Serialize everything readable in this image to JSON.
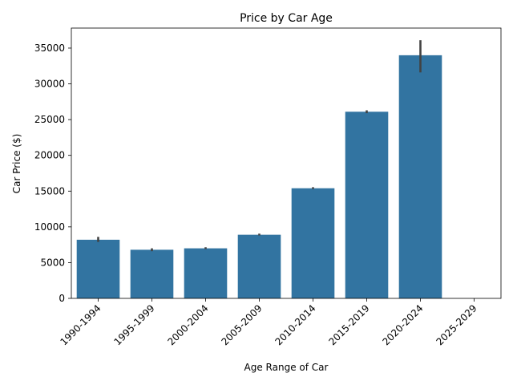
{
  "chart_data": {
    "type": "bar",
    "title": "Price by Car Age",
    "xlabel": "Age Range of Car",
    "ylabel": "Car Price ($)",
    "categories": [
      "1990-1994",
      "1995-1999",
      "2000-2004",
      "2005-2009",
      "2010-2014",
      "2015-2019",
      "2020-2024",
      "2025-2029"
    ],
    "values": [
      8200,
      6800,
      7000,
      8900,
      15400,
      26100,
      34000,
      null
    ],
    "error_bars": [
      [
        7900,
        8600
      ],
      [
        6600,
        7000
      ],
      [
        6900,
        7150
      ],
      [
        8800,
        9050
      ],
      [
        15300,
        15550
      ],
      [
        25900,
        26300
      ],
      [
        31600,
        36100
      ],
      null
    ],
    "yticks": [
      0,
      5000,
      10000,
      15000,
      20000,
      25000,
      30000,
      35000
    ],
    "ylim": [
      0,
      37800
    ],
    "grid": false,
    "colors": {
      "bar": "#3274a1",
      "error": "#424242",
      "axis": "#000000"
    }
  }
}
